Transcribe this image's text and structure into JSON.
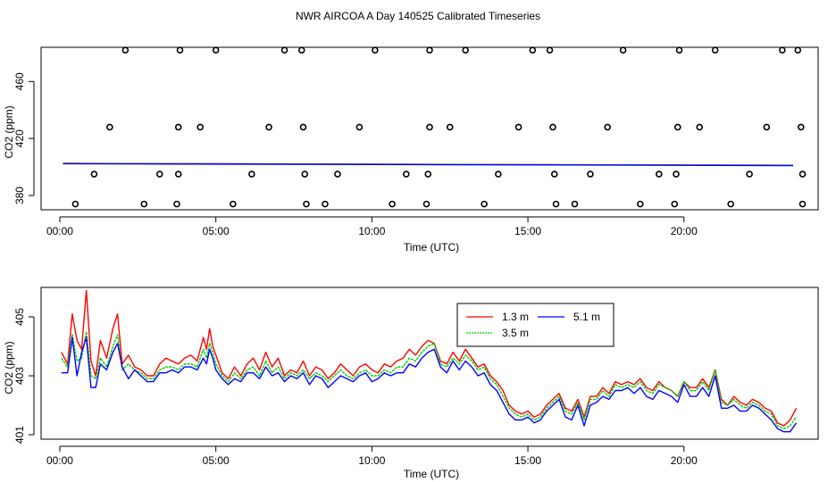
{
  "figure": {
    "title": "NWR AIRCOA A  Day 140525  Calibrated Timeseries"
  },
  "chart_data": [
    {
      "type": "scatter+line",
      "title": "",
      "xlabel": "Time (UTC)",
      "ylabel": "CO2 (ppm)",
      "xlim": [
        -0.6,
        24.3
      ],
      "ylim": [
        370,
        484
      ],
      "xticks": [
        0,
        5,
        10,
        15,
        20
      ],
      "xtick_labels": [
        "00:00",
        "05:00",
        "10:00",
        "15:00",
        "20:00"
      ],
      "yticks": [
        380,
        420,
        460
      ],
      "ytick_labels": [
        "380",
        "420",
        "460"
      ],
      "calibration_points": [
        {
          "level": 482,
          "x": [
            2.1,
            3.85,
            5.0,
            7.2,
            7.75,
            10.1,
            11.85,
            13.0,
            15.15,
            15.7,
            18.05,
            19.85,
            21.0,
            23.15,
            23.65
          ]
        },
        {
          "level": 428,
          "x": [
            1.6,
            3.8,
            4.5,
            6.7,
            7.8,
            9.6,
            11.85,
            12.5,
            14.7,
            15.8,
            17.55,
            19.8,
            20.5,
            22.65,
            23.75
          ]
        },
        {
          "level": 395,
          "x": [
            1.1,
            3.2,
            3.8,
            6.15,
            7.85,
            8.9,
            11.1,
            11.8,
            14.05,
            15.85,
            17.0,
            19.2,
            19.75,
            22.1,
            23.8
          ]
        },
        {
          "level": 374,
          "x": [
            0.5,
            2.7,
            3.75,
            5.55,
            7.9,
            8.5,
            10.65,
            11.75,
            13.6,
            15.9,
            16.5,
            18.6,
            19.7,
            21.5,
            23.8
          ]
        }
      ],
      "series": [
        {
          "name": "1.3 m",
          "color": "#ff0000",
          "x": [
            0.1,
            23.5
          ],
          "y": [
            402.6,
            401.2
          ]
        },
        {
          "name": "3.5 m",
          "color": "#00cc00",
          "x": [
            0.1,
            23.5
          ],
          "y": [
            402.5,
            401.2
          ]
        },
        {
          "name": "5.1 m",
          "color": "#0000ff",
          "x": [
            0.1,
            23.5
          ],
          "y": [
            402.3,
            401.0
          ]
        }
      ]
    },
    {
      "type": "line",
      "title": "",
      "xlabel": "Time (UTC)",
      "ylabel": "CO2 (ppm)",
      "xlim": [
        -0.6,
        24.3
      ],
      "ylim": [
        400.85,
        406.0
      ],
      "xticks": [
        0,
        5,
        10,
        15,
        20
      ],
      "xtick_labels": [
        "00:00",
        "05:00",
        "10:00",
        "15:00",
        "20:00"
      ],
      "yticks": [
        401,
        403,
        405
      ],
      "ytick_labels": [
        "401",
        "403",
        "405"
      ],
      "legend": "top-center",
      "series": [
        {
          "name": "1.3 m",
          "color": "#ff0000",
          "x": [
            0.05,
            0.25,
            0.4,
            0.55,
            0.7,
            0.85,
            1.0,
            1.15,
            1.3,
            1.5,
            1.7,
            1.85,
            2.0,
            2.2,
            2.4,
            2.6,
            2.8,
            3.0,
            3.2,
            3.4,
            3.6,
            3.8,
            4.0,
            4.2,
            4.4,
            4.5,
            4.6,
            4.7,
            4.8,
            4.9,
            5.0,
            5.2,
            5.4,
            5.6,
            5.8,
            6.0,
            6.2,
            6.4,
            6.6,
            6.8,
            7.0,
            7.2,
            7.4,
            7.6,
            7.8,
            8.0,
            8.2,
            8.4,
            8.6,
            8.8,
            9.0,
            9.2,
            9.4,
            9.6,
            9.8,
            10.0,
            10.2,
            10.4,
            10.6,
            10.8,
            11.0,
            11.2,
            11.4,
            11.6,
            11.8,
            12.0,
            12.2,
            12.4,
            12.6,
            12.8,
            13.0,
            13.2,
            13.4,
            13.6,
            13.8,
            14.0,
            14.2,
            14.4,
            14.6,
            14.8,
            15.0,
            15.2,
            15.4,
            15.6,
            15.8,
            16.0,
            16.2,
            16.4,
            16.6,
            16.8,
            17.0,
            17.2,
            17.4,
            17.6,
            17.8,
            18.0,
            18.2,
            18.4,
            18.6,
            18.8,
            19.0,
            19.2,
            19.4,
            19.6,
            19.8,
            20.0,
            20.2,
            20.4,
            20.6,
            20.8,
            21.0,
            21.2,
            21.4,
            21.6,
            21.8,
            22.0,
            22.2,
            22.4,
            22.6,
            22.8,
            23.0,
            23.2,
            23.4,
            23.6
          ],
          "y": [
            403.8,
            403.4,
            405.1,
            404.2,
            403.9,
            405.9,
            403.5,
            403.0,
            404.2,
            403.6,
            404.6,
            405.1,
            403.4,
            403.7,
            403.3,
            403.2,
            403.0,
            403.0,
            403.4,
            403.6,
            403.5,
            403.4,
            403.6,
            403.7,
            403.5,
            403.9,
            404.3,
            403.9,
            404.6,
            404.0,
            403.7,
            403.1,
            402.9,
            403.3,
            403.0,
            403.4,
            403.6,
            403.2,
            403.8,
            403.3,
            403.6,
            403.0,
            403.2,
            403.1,
            403.5,
            403.0,
            403.3,
            403.2,
            402.9,
            403.1,
            403.4,
            403.2,
            403.0,
            403.3,
            403.4,
            403.2,
            403.1,
            403.4,
            403.3,
            403.5,
            403.6,
            403.9,
            403.7,
            404.0,
            404.2,
            404.1,
            403.5,
            403.4,
            403.8,
            403.5,
            403.9,
            403.6,
            403.3,
            403.4,
            403.0,
            402.8,
            402.5,
            402.0,
            401.8,
            401.7,
            401.8,
            401.6,
            401.7,
            402.0,
            402.2,
            402.4,
            401.9,
            401.8,
            402.2,
            401.6,
            402.3,
            402.3,
            402.6,
            402.4,
            402.8,
            402.7,
            402.8,
            402.7,
            402.9,
            402.6,
            402.5,
            402.8,
            402.6,
            402.5,
            402.3,
            402.8,
            402.6,
            402.6,
            402.9,
            402.6,
            403.2,
            402.2,
            402.0,
            402.3,
            402.1,
            402.0,
            402.2,
            402.1,
            401.9,
            401.8,
            401.4,
            401.3,
            401.5,
            401.9
          ]
        },
        {
          "name": "3.5 m",
          "color": "#00cc00",
          "x": [
            0.05,
            0.25,
            0.4,
            0.55,
            0.7,
            0.85,
            1.0,
            1.15,
            1.3,
            1.5,
            1.7,
            1.85,
            2.0,
            2.2,
            2.4,
            2.6,
            2.8,
            3.0,
            3.2,
            3.4,
            3.6,
            3.8,
            4.0,
            4.2,
            4.4,
            4.5,
            4.6,
            4.7,
            4.8,
            4.9,
            5.0,
            5.2,
            5.4,
            5.6,
            5.8,
            6.0,
            6.2,
            6.4,
            6.6,
            6.8,
            7.0,
            7.2,
            7.4,
            7.6,
            7.8,
            8.0,
            8.2,
            8.4,
            8.6,
            8.8,
            9.0,
            9.2,
            9.4,
            9.6,
            9.8,
            10.0,
            10.2,
            10.4,
            10.6,
            10.8,
            11.0,
            11.2,
            11.4,
            11.6,
            11.8,
            12.0,
            12.2,
            12.4,
            12.6,
            12.8,
            13.0,
            13.2,
            13.4,
            13.6,
            13.8,
            14.0,
            14.2,
            14.4,
            14.6,
            14.8,
            15.0,
            15.2,
            15.4,
            15.6,
            15.8,
            16.0,
            16.2,
            16.4,
            16.6,
            16.8,
            17.0,
            17.2,
            17.4,
            17.6,
            17.8,
            18.0,
            18.2,
            18.4,
            18.6,
            18.8,
            19.0,
            19.2,
            19.4,
            19.6,
            19.8,
            20.0,
            20.2,
            20.4,
            20.6,
            20.8,
            21.0,
            21.2,
            21.4,
            21.6,
            21.8,
            22.0,
            22.2,
            22.4,
            22.6,
            22.8,
            23.0,
            23.2,
            23.4,
            23.6
          ],
          "y": [
            403.6,
            403.3,
            404.4,
            403.5,
            403.6,
            404.5,
            403.0,
            402.9,
            403.6,
            403.3,
            404.0,
            404.4,
            403.2,
            403.4,
            403.2,
            403.1,
            402.9,
            402.9,
            403.2,
            403.3,
            403.3,
            403.2,
            403.4,
            403.4,
            403.3,
            403.6,
            403.9,
            403.6,
            404.1,
            403.8,
            403.4,
            403.0,
            402.8,
            403.1,
            402.9,
            403.2,
            403.3,
            403.0,
            403.5,
            403.1,
            403.3,
            402.9,
            403.1,
            403.0,
            403.2,
            402.9,
            403.1,
            403.0,
            402.8,
            403.0,
            403.2,
            403.0,
            402.9,
            403.1,
            403.2,
            403.0,
            403.0,
            403.2,
            403.1,
            403.3,
            403.3,
            403.6,
            403.5,
            403.8,
            404.0,
            404.1,
            403.4,
            403.3,
            403.6,
            403.4,
            403.7,
            403.5,
            403.2,
            403.3,
            402.9,
            402.7,
            402.3,
            401.9,
            401.7,
            401.6,
            401.7,
            401.5,
            401.6,
            401.9,
            402.1,
            402.3,
            401.8,
            401.7,
            402.1,
            401.5,
            402.2,
            402.2,
            402.5,
            402.3,
            402.7,
            402.6,
            402.7,
            402.6,
            402.8,
            402.5,
            402.4,
            402.7,
            402.6,
            402.5,
            402.3,
            402.8,
            402.5,
            402.5,
            402.8,
            402.5,
            403.2,
            402.1,
            402.0,
            402.2,
            402.0,
            401.9,
            402.1,
            402.0,
            401.8,
            401.7,
            401.3,
            401.2,
            401.3,
            401.6
          ]
        },
        {
          "name": "5.1 m",
          "color": "#0000ff",
          "x": [
            0.05,
            0.25,
            0.4,
            0.55,
            0.7,
            0.85,
            1.0,
            1.15,
            1.3,
            1.5,
            1.7,
            1.85,
            2.0,
            2.2,
            2.4,
            2.6,
            2.8,
            3.0,
            3.2,
            3.4,
            3.6,
            3.8,
            4.0,
            4.2,
            4.4,
            4.5,
            4.6,
            4.7,
            4.8,
            4.9,
            5.0,
            5.2,
            5.4,
            5.6,
            5.8,
            6.0,
            6.2,
            6.4,
            6.6,
            6.8,
            7.0,
            7.2,
            7.4,
            7.6,
            7.8,
            8.0,
            8.2,
            8.4,
            8.6,
            8.8,
            9.0,
            9.2,
            9.4,
            9.6,
            9.8,
            10.0,
            10.2,
            10.4,
            10.6,
            10.8,
            11.0,
            11.2,
            11.4,
            11.6,
            11.8,
            12.0,
            12.2,
            12.4,
            12.6,
            12.8,
            13.0,
            13.2,
            13.4,
            13.6,
            13.8,
            14.0,
            14.2,
            14.4,
            14.6,
            14.8,
            15.0,
            15.2,
            15.4,
            15.6,
            15.8,
            16.0,
            16.2,
            16.4,
            16.6,
            16.8,
            17.0,
            17.2,
            17.4,
            17.6,
            17.8,
            18.0,
            18.2,
            18.4,
            18.6,
            18.8,
            19.0,
            19.2,
            19.4,
            19.6,
            19.8,
            20.0,
            20.2,
            20.4,
            20.6,
            20.8,
            21.0,
            21.2,
            21.4,
            21.6,
            21.8,
            22.0,
            22.2,
            22.4,
            22.6,
            22.8,
            23.0,
            23.2,
            23.4,
            23.6
          ],
          "y": [
            403.1,
            403.1,
            404.3,
            403.0,
            403.8,
            404.3,
            402.6,
            402.6,
            403.4,
            403.2,
            403.8,
            404.1,
            403.3,
            402.9,
            403.2,
            403.0,
            402.8,
            402.8,
            403.1,
            403.1,
            403.2,
            403.1,
            403.3,
            403.3,
            403.2,
            403.4,
            403.6,
            403.4,
            403.9,
            403.6,
            403.2,
            402.9,
            402.7,
            402.9,
            402.8,
            403.1,
            403.1,
            402.9,
            403.3,
            403.0,
            403.1,
            402.8,
            403.0,
            402.9,
            403.1,
            402.7,
            403.0,
            402.9,
            402.6,
            402.8,
            403.0,
            402.9,
            402.8,
            403.0,
            403.1,
            402.8,
            402.9,
            403.1,
            403.0,
            403.1,
            403.1,
            403.4,
            403.3,
            403.6,
            403.8,
            403.9,
            403.3,
            403.1,
            403.5,
            403.2,
            403.5,
            403.3,
            403.0,
            403.1,
            402.7,
            402.5,
            402.1,
            401.7,
            401.5,
            401.5,
            401.6,
            401.4,
            401.5,
            401.8,
            402.0,
            402.2,
            401.6,
            401.5,
            402.0,
            401.3,
            402.0,
            402.1,
            402.3,
            402.2,
            402.5,
            402.5,
            402.6,
            402.4,
            402.6,
            402.3,
            402.2,
            402.5,
            402.4,
            402.3,
            402.1,
            402.7,
            402.3,
            402.3,
            402.6,
            402.3,
            403.0,
            401.9,
            401.9,
            402.0,
            401.8,
            401.8,
            402.0,
            401.9,
            401.7,
            401.5,
            401.2,
            401.1,
            401.1,
            401.4
          ]
        }
      ]
    }
  ]
}
